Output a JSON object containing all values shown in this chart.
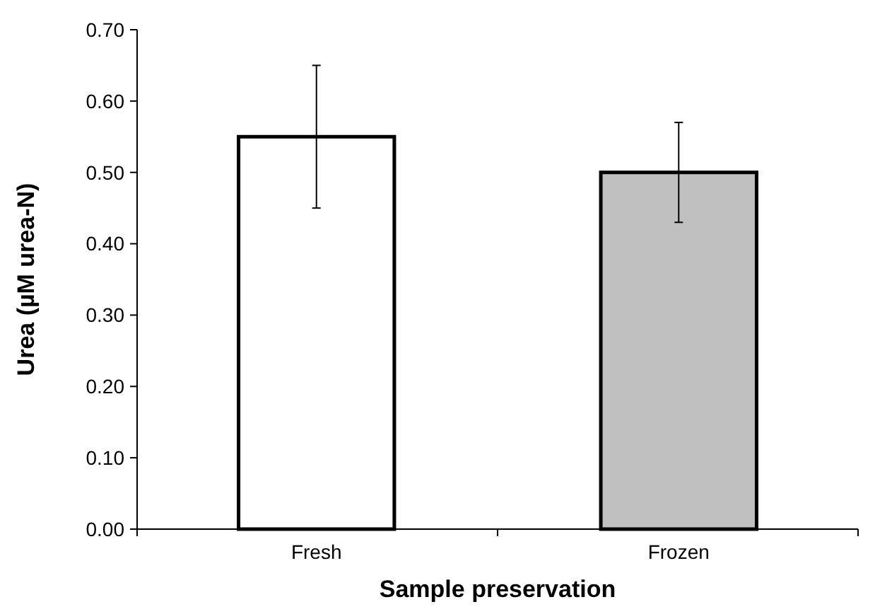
{
  "chart_data": {
    "type": "bar",
    "xlabel": "Sample preservation",
    "ylabel": "Urea (µM urea-N)",
    "categories": [
      "Fresh",
      "Frozen"
    ],
    "values": [
      0.55,
      0.5
    ],
    "errors": [
      0.1,
      0.07
    ],
    "colors": [
      "#ffffff",
      "#c0c0c0"
    ],
    "ylim": [
      0,
      0.7
    ],
    "yticks": [
      {
        "value": 0,
        "label": "0.00"
      },
      {
        "value": 0.1,
        "label": "0.10"
      },
      {
        "value": 0.2,
        "label": "0.20"
      },
      {
        "value": 0.3,
        "label": "0.30"
      },
      {
        "value": 0.4,
        "label": "0.40"
      },
      {
        "value": 0.5,
        "label": "0.50"
      },
      {
        "value": 0.6,
        "label": "0.60"
      },
      {
        "value": 0.7,
        "label": "0.70"
      }
    ],
    "grid": false
  }
}
